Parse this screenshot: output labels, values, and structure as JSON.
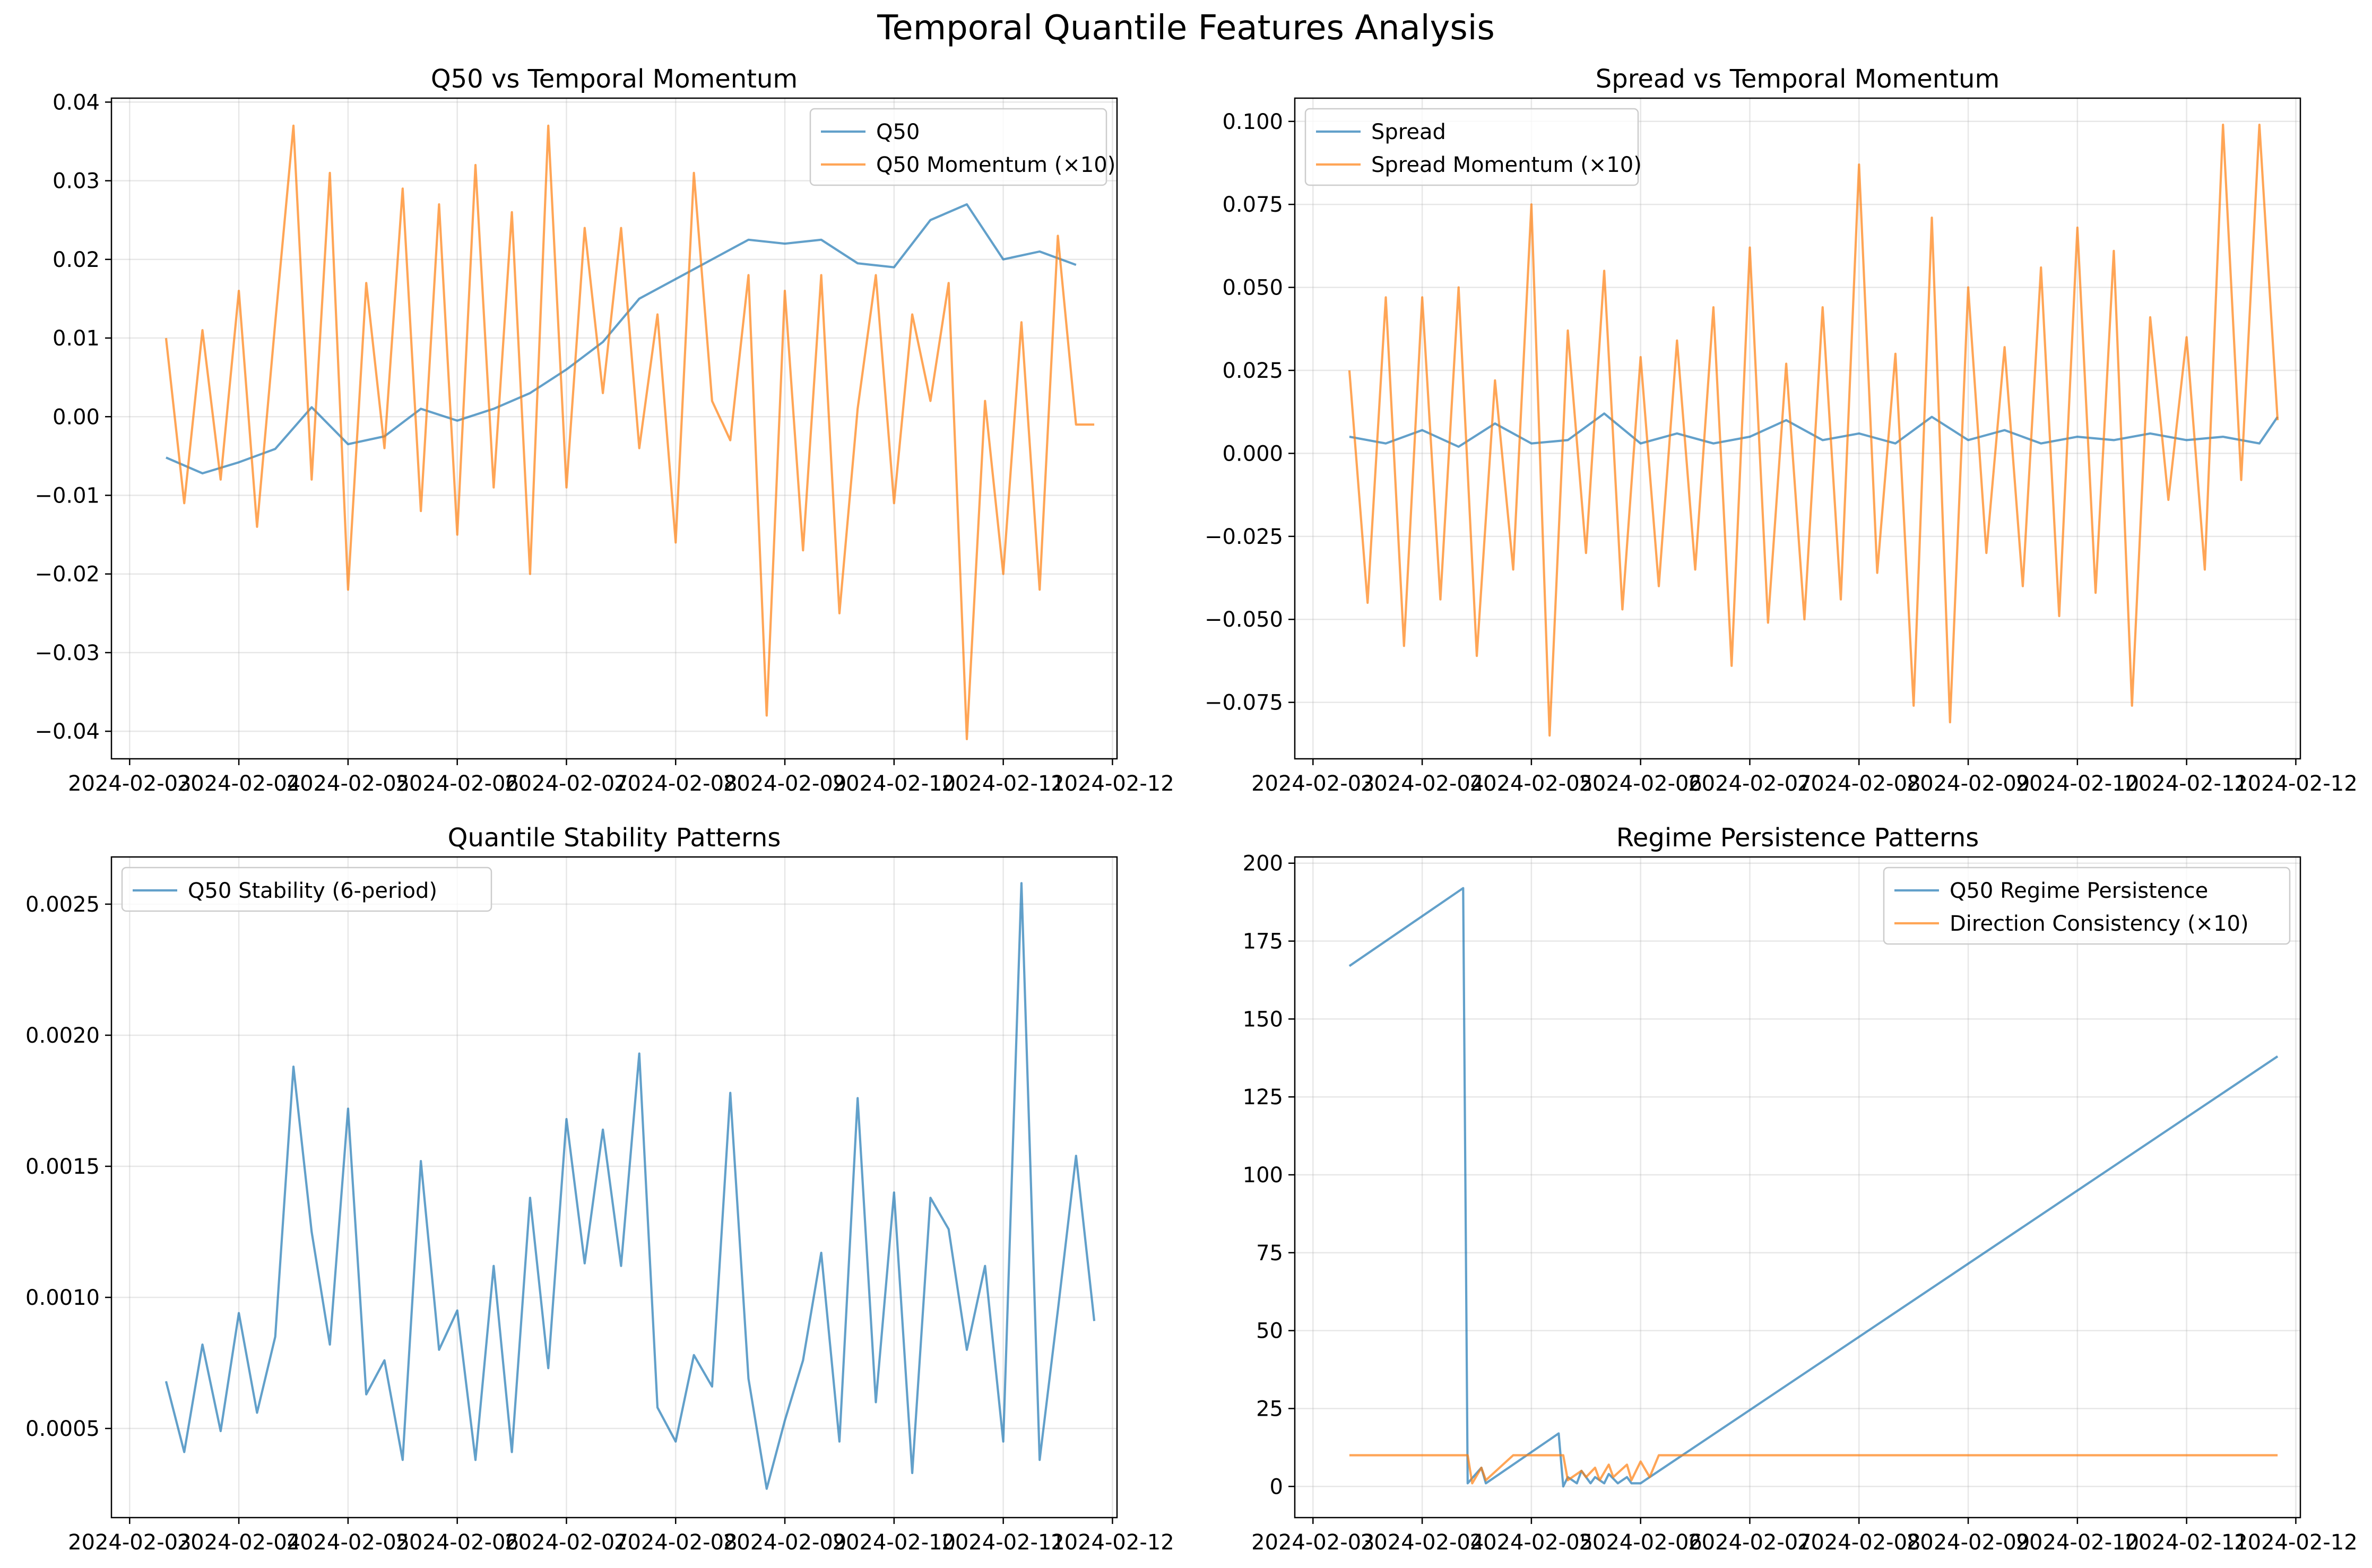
{
  "figure_title": "Temporal Quantile Features Analysis",
  "colors": {
    "blue": "#1f77b4",
    "orange": "#ff7f0e"
  },
  "chart_data": [
    {
      "type": "line",
      "title": "Q50 vs Temporal Momentum",
      "xlabel": "",
      "ylabel": "",
      "legend_position": "upper right",
      "grid": true,
      "x_ticks": [
        "2024-02-03",
        "2024-02-04",
        "2024-02-05",
        "2024-02-06",
        "2024-02-07",
        "2024-02-08",
        "2024-02-09",
        "2024-02-10",
        "2024-02-11",
        "2024-02-12"
      ],
      "x_range": [
        "2024-02-02T20:00",
        "2024-02-12T01:00"
      ],
      "ylim": [
        -0.0435,
        0.0405
      ],
      "y_ticks": [
        -0.04,
        -0.03,
        -0.02,
        -0.01,
        0.0,
        0.01,
        0.02,
        0.03,
        0.04
      ],
      "y_tick_labels": [
        "−0.04",
        "−0.03",
        "−0.02",
        "−0.01",
        "0.00",
        "0.01",
        "0.02",
        "0.03",
        "0.04"
      ],
      "series": [
        {
          "name": "Q50",
          "color": "#1f77b4",
          "x": [
            "2024-02-03T08:00",
            "2024-02-03T16:00",
            "2024-02-04T00:00",
            "2024-02-04T08:00",
            "2024-02-04T16:00",
            "2024-02-05T00:00",
            "2024-02-05T08:00",
            "2024-02-05T16:00",
            "2024-02-06T00:00",
            "2024-02-06T08:00",
            "2024-02-06T16:00",
            "2024-02-07T00:00",
            "2024-02-07T08:00",
            "2024-02-07T16:00",
            "2024-02-08T00:00",
            "2024-02-08T08:00",
            "2024-02-08T16:00",
            "2024-02-09T00:00",
            "2024-02-09T08:00",
            "2024-02-09T16:00",
            "2024-02-10T00:00",
            "2024-02-10T08:00",
            "2024-02-10T16:00",
            "2024-02-11T00:00",
            "2024-02-11T08:00",
            "2024-02-11T16:00"
          ],
          "y": [
            -0.0052,
            -0.0072,
            -0.0058,
            -0.0041,
            0.0012,
            -0.0035,
            -0.0025,
            0.001,
            -0.0005,
            0.001,
            0.003,
            0.006,
            0.0095,
            0.015,
            0.0175,
            0.02,
            0.0225,
            0.022,
            0.0225,
            0.0195,
            0.019,
            0.025,
            0.027,
            0.02,
            0.021,
            0.0193
          ]
        },
        {
          "name": "Q50 Momentum (×10)",
          "color": "#ff7f0e",
          "x": [
            "2024-02-03T08:00",
            "2024-02-03T12:00",
            "2024-02-03T16:00",
            "2024-02-03T20:00",
            "2024-02-04T00:00",
            "2024-02-04T04:00",
            "2024-02-04T08:00",
            "2024-02-04T12:00",
            "2024-02-04T16:00",
            "2024-02-04T20:00",
            "2024-02-05T00:00",
            "2024-02-05T04:00",
            "2024-02-05T08:00",
            "2024-02-05T12:00",
            "2024-02-05T16:00",
            "2024-02-05T20:00",
            "2024-02-06T00:00",
            "2024-02-06T04:00",
            "2024-02-06T08:00",
            "2024-02-06T12:00",
            "2024-02-06T16:00",
            "2024-02-06T20:00",
            "2024-02-07T00:00",
            "2024-02-07T04:00",
            "2024-02-07T08:00",
            "2024-02-07T12:00",
            "2024-02-07T16:00",
            "2024-02-07T20:00",
            "2024-02-08T00:00",
            "2024-02-08T04:00",
            "2024-02-08T08:00",
            "2024-02-08T12:00",
            "2024-02-08T16:00",
            "2024-02-08T20:00",
            "2024-02-09T00:00",
            "2024-02-09T04:00",
            "2024-02-09T08:00",
            "2024-02-09T12:00",
            "2024-02-09T16:00",
            "2024-02-09T20:00",
            "2024-02-10T00:00",
            "2024-02-10T04:00",
            "2024-02-10T08:00",
            "2024-02-10T12:00",
            "2024-02-10T16:00",
            "2024-02-10T20:00",
            "2024-02-11T00:00",
            "2024-02-11T04:00",
            "2024-02-11T08:00",
            "2024-02-11T12:00",
            "2024-02-11T16:00",
            "2024-02-11T20:00"
          ],
          "y": [
            0.01,
            -0.011,
            0.011,
            -0.008,
            0.016,
            -0.014,
            0.012,
            0.037,
            -0.008,
            0.031,
            -0.022,
            0.017,
            -0.004,
            0.029,
            -0.012,
            0.027,
            -0.015,
            0.032,
            -0.009,
            0.026,
            -0.02,
            0.037,
            -0.009,
            0.024,
            0.003,
            0.024,
            -0.004,
            0.013,
            -0.016,
            0.031,
            0.002,
            -0.003,
            0.018,
            -0.038,
            0.016,
            -0.017,
            0.018,
            -0.025,
            0.001,
            0.018,
            -0.011,
            0.013,
            0.002,
            0.017,
            -0.041,
            0.002,
            -0.02,
            0.012,
            -0.022,
            0.023,
            -0.001,
            -0.001
          ]
        }
      ]
    },
    {
      "type": "line",
      "title": "Spread vs Temporal Momentum",
      "xlabel": "",
      "ylabel": "",
      "legend_position": "upper left",
      "grid": true,
      "x_ticks": [
        "2024-02-03",
        "2024-02-04",
        "2024-02-05",
        "2024-02-06",
        "2024-02-07",
        "2024-02-08",
        "2024-02-09",
        "2024-02-10",
        "2024-02-11",
        "2024-02-12"
      ],
      "x_range": [
        "2024-02-02T20:00",
        "2024-02-12T01:00"
      ],
      "ylim": [
        -0.092,
        0.107
      ],
      "y_ticks": [
        -0.075,
        -0.05,
        -0.025,
        0.0,
        0.025,
        0.05,
        0.075,
        0.1
      ],
      "y_tick_labels": [
        "−0.075",
        "−0.050",
        "−0.025",
        "0.000",
        "0.025",
        "0.050",
        "0.075",
        "0.100"
      ],
      "series": [
        {
          "name": "Spread",
          "color": "#1f77b4",
          "x": [
            "2024-02-03T08:00",
            "2024-02-03T16:00",
            "2024-02-04T00:00",
            "2024-02-04T08:00",
            "2024-02-04T16:00",
            "2024-02-05T00:00",
            "2024-02-05T08:00",
            "2024-02-05T16:00",
            "2024-02-06T00:00",
            "2024-02-06T08:00",
            "2024-02-06T16:00",
            "2024-02-07T00:00",
            "2024-02-07T08:00",
            "2024-02-07T16:00",
            "2024-02-08T00:00",
            "2024-02-08T08:00",
            "2024-02-08T16:00",
            "2024-02-09T00:00",
            "2024-02-09T08:00",
            "2024-02-09T16:00",
            "2024-02-10T00:00",
            "2024-02-10T08:00",
            "2024-02-10T16:00",
            "2024-02-11T00:00",
            "2024-02-11T08:00",
            "2024-02-11T16:00",
            "2024-02-11T20:00"
          ],
          "y": [
            0.005,
            0.003,
            0.007,
            0.002,
            0.009,
            0.003,
            0.004,
            0.012,
            0.003,
            0.006,
            0.003,
            0.005,
            0.01,
            0.004,
            0.006,
            0.003,
            0.011,
            0.004,
            0.007,
            0.003,
            0.005,
            0.004,
            0.006,
            0.004,
            0.005,
            0.003,
            0.011
          ]
        },
        {
          "name": "Spread Momentum (×10)",
          "color": "#ff7f0e",
          "x": [
            "2024-02-03T08:00",
            "2024-02-03T12:00",
            "2024-02-03T16:00",
            "2024-02-03T20:00",
            "2024-02-04T00:00",
            "2024-02-04T04:00",
            "2024-02-04T08:00",
            "2024-02-04T12:00",
            "2024-02-04T16:00",
            "2024-02-04T20:00",
            "2024-02-05T00:00",
            "2024-02-05T04:00",
            "2024-02-05T08:00",
            "2024-02-05T12:00",
            "2024-02-05T16:00",
            "2024-02-05T20:00",
            "2024-02-06T00:00",
            "2024-02-06T04:00",
            "2024-02-06T08:00",
            "2024-02-06T12:00",
            "2024-02-06T16:00",
            "2024-02-06T20:00",
            "2024-02-07T00:00",
            "2024-02-07T04:00",
            "2024-02-07T08:00",
            "2024-02-07T12:00",
            "2024-02-07T16:00",
            "2024-02-07T20:00",
            "2024-02-08T00:00",
            "2024-02-08T04:00",
            "2024-02-08T08:00",
            "2024-02-08T12:00",
            "2024-02-08T16:00",
            "2024-02-08T20:00",
            "2024-02-09T00:00",
            "2024-02-09T04:00",
            "2024-02-09T08:00",
            "2024-02-09T12:00",
            "2024-02-09T16:00",
            "2024-02-09T20:00",
            "2024-02-10T00:00",
            "2024-02-10T04:00",
            "2024-02-10T08:00",
            "2024-02-10T12:00",
            "2024-02-10T16:00",
            "2024-02-10T20:00",
            "2024-02-11T00:00",
            "2024-02-11T04:00",
            "2024-02-11T08:00",
            "2024-02-11T12:00",
            "2024-02-11T16:00",
            "2024-02-11T20:00"
          ],
          "y": [
            0.025,
            -0.045,
            0.047,
            -0.058,
            0.047,
            -0.044,
            0.05,
            -0.061,
            0.022,
            -0.035,
            0.075,
            -0.085,
            0.037,
            -0.03,
            0.055,
            -0.047,
            0.029,
            -0.04,
            0.034,
            -0.035,
            0.044,
            -0.064,
            0.062,
            -0.051,
            0.027,
            -0.05,
            0.044,
            -0.044,
            0.087,
            -0.036,
            0.03,
            -0.076,
            0.071,
            -0.081,
            0.05,
            -0.03,
            0.032,
            -0.04,
            0.056,
            -0.049,
            0.068,
            -0.042,
            0.061,
            -0.076,
            0.041,
            -0.014,
            0.035,
            -0.035,
            0.099,
            -0.008,
            0.099,
            0.01
          ]
        }
      ]
    },
    {
      "type": "line",
      "title": "Quantile Stability Patterns",
      "xlabel": "",
      "ylabel": "",
      "legend_position": "upper left",
      "grid": true,
      "x_ticks": [
        "2024-02-03",
        "2024-02-04",
        "2024-02-05",
        "2024-02-06",
        "2024-02-07",
        "2024-02-08",
        "2024-02-09",
        "2024-02-10",
        "2024-02-11",
        "2024-02-12"
      ],
      "x_range": [
        "2024-02-02T20:00",
        "2024-02-12T01:00"
      ],
      "ylim": [
        0.00016,
        0.00268
      ],
      "y_ticks": [
        0.0005,
        0.001,
        0.0015,
        0.002,
        0.0025
      ],
      "y_tick_labels": [
        "0.0005",
        "0.0010",
        "0.0015",
        "0.0020",
        "0.0025"
      ],
      "series": [
        {
          "name": "Q50 Stability (6-period)",
          "color": "#1f77b4",
          "x": [
            "2024-02-03T08:00",
            "2024-02-03T12:00",
            "2024-02-03T16:00",
            "2024-02-03T20:00",
            "2024-02-04T00:00",
            "2024-02-04T04:00",
            "2024-02-04T08:00",
            "2024-02-04T12:00",
            "2024-02-04T16:00",
            "2024-02-04T20:00",
            "2024-02-05T00:00",
            "2024-02-05T04:00",
            "2024-02-05T08:00",
            "2024-02-05T12:00",
            "2024-02-05T16:00",
            "2024-02-05T20:00",
            "2024-02-06T00:00",
            "2024-02-06T04:00",
            "2024-02-06T08:00",
            "2024-02-06T12:00",
            "2024-02-06T16:00",
            "2024-02-06T20:00",
            "2024-02-07T00:00",
            "2024-02-07T04:00",
            "2024-02-07T08:00",
            "2024-02-07T12:00",
            "2024-02-07T16:00",
            "2024-02-07T20:00",
            "2024-02-08T00:00",
            "2024-02-08T04:00",
            "2024-02-08T08:00",
            "2024-02-08T12:00",
            "2024-02-08T16:00",
            "2024-02-08T20:00",
            "2024-02-09T00:00",
            "2024-02-09T04:00",
            "2024-02-09T08:00",
            "2024-02-09T12:00",
            "2024-02-09T16:00",
            "2024-02-09T20:00",
            "2024-02-10T00:00",
            "2024-02-10T04:00",
            "2024-02-10T08:00",
            "2024-02-10T12:00",
            "2024-02-10T16:00",
            "2024-02-10T20:00",
            "2024-02-11T00:00",
            "2024-02-11T04:00",
            "2024-02-11T08:00",
            "2024-02-11T12:00",
            "2024-02-11T16:00",
            "2024-02-11T20:00"
          ],
          "y": [
            0.00068,
            0.00041,
            0.00082,
            0.00049,
            0.00094,
            0.00056,
            0.00085,
            0.00188,
            0.00125,
            0.00082,
            0.00172,
            0.00063,
            0.00076,
            0.00038,
            0.00152,
            0.0008,
            0.00095,
            0.00038,
            0.00112,
            0.00041,
            0.00138,
            0.00073,
            0.00168,
            0.00113,
            0.00164,
            0.00112,
            0.00193,
            0.00058,
            0.00045,
            0.00078,
            0.00066,
            0.00178,
            0.00069,
            0.00027,
            0.00053,
            0.00076,
            0.00117,
            0.00045,
            0.00176,
            0.0006,
            0.0014,
            0.00033,
            0.00138,
            0.00126,
            0.0008,
            0.00112,
            0.00045,
            0.00258,
            0.00038,
            0.00095,
            0.00154,
            0.00091
          ]
        }
      ]
    },
    {
      "type": "line",
      "title": "Regime Persistence Patterns",
      "xlabel": "",
      "ylabel": "",
      "legend_position": "upper right",
      "grid": true,
      "x_ticks": [
        "2024-02-03",
        "2024-02-04",
        "2024-02-05",
        "2024-02-06",
        "2024-02-07",
        "2024-02-08",
        "2024-02-09",
        "2024-02-10",
        "2024-02-11",
        "2024-02-12"
      ],
      "x_range": [
        "2024-02-02T20:00",
        "2024-02-12T01:00"
      ],
      "ylim": [
        -10,
        202
      ],
      "y_ticks": [
        0,
        25,
        50,
        75,
        100,
        125,
        150,
        175,
        200
      ],
      "y_tick_labels": [
        "0",
        "25",
        "50",
        "75",
        "100",
        "125",
        "150",
        "175",
        "200"
      ],
      "series": [
        {
          "name": "Q50 Regime Persistence",
          "color": "#1f77b4",
          "x": [
            "2024-02-03T08:00",
            "2024-02-04T09:00",
            "2024-02-04T10:00",
            "2024-02-04T13:00",
            "2024-02-04T14:00",
            "2024-02-05T06:00",
            "2024-02-05T07:00",
            "2024-02-05T08:00",
            "2024-02-05T10:00",
            "2024-02-05T11:00",
            "2024-02-05T13:00",
            "2024-02-05T14:00",
            "2024-02-05T16:00",
            "2024-02-05T17:00",
            "2024-02-05T19:00",
            "2024-02-05T21:00",
            "2024-02-05T22:00",
            "2024-02-06T00:00",
            "2024-02-06T01:00",
            "2024-02-11T20:00"
          ],
          "y": [
            167,
            192,
            1,
            6,
            1,
            17,
            0,
            3,
            1,
            5,
            1,
            3,
            1,
            4,
            1,
            3,
            1,
            1,
            2,
            138
          ]
        },
        {
          "name": "Direction Consistency (×10)",
          "color": "#ff7f0e",
          "x": [
            "2024-02-03T08:00",
            "2024-02-04T10:00",
            "2024-02-04T11:00",
            "2024-02-04T13:00",
            "2024-02-04T14:00",
            "2024-02-04T20:00",
            "2024-02-05T07:00",
            "2024-02-05T08:00",
            "2024-02-05T11:00",
            "2024-02-05T12:00",
            "2024-02-05T14:00",
            "2024-02-05T15:00",
            "2024-02-05T17:00",
            "2024-02-05T18:00",
            "2024-02-05T21:00",
            "2024-02-05T22:00",
            "2024-02-06T00:00",
            "2024-02-06T02:00",
            "2024-02-06T04:00",
            "2024-02-11T20:00"
          ],
          "y": [
            10,
            10,
            1,
            6,
            2,
            10,
            10,
            2,
            5,
            3,
            6,
            2,
            7,
            3,
            7,
            2,
            8,
            3,
            10,
            10
          ]
        }
      ]
    }
  ]
}
